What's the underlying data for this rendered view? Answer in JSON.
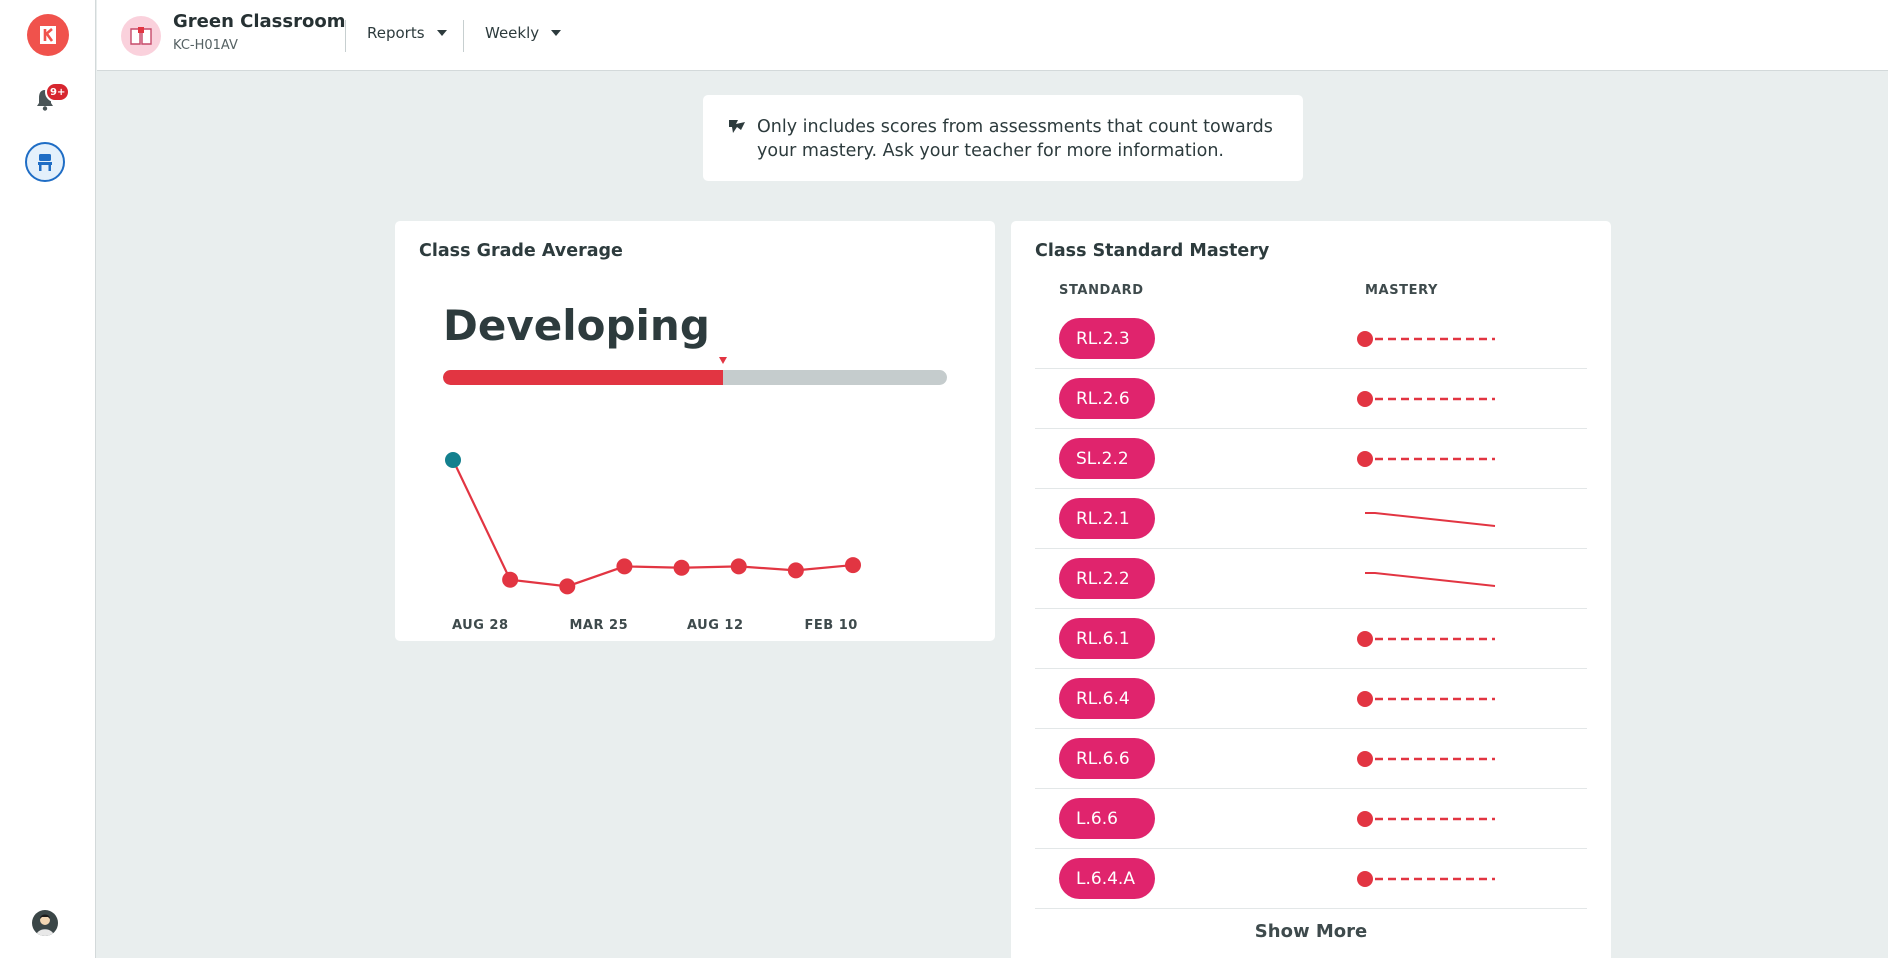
{
  "rail": {
    "notification_badge": "9+"
  },
  "header": {
    "class_name": "Green Classroom",
    "class_code": "KC-H01AV",
    "reports_label": "Reports",
    "period_label": "Weekly"
  },
  "note": {
    "text": "Only includes scores from assessments that count towards your mastery. Ask your teacher for more information."
  },
  "grade_card": {
    "title": "Class Grade Average",
    "level": "Developing",
    "progress_fraction": 0.555,
    "x_labels": [
      "AUG 28",
      "MAR 25",
      "AUG 12",
      "FEB 10"
    ]
  },
  "chart_data": {
    "type": "line",
    "x_tick_labels": [
      "AUG 28",
      "MAR 25",
      "AUG 12",
      "FEB 10"
    ],
    "values": [
      1.0,
      0.1,
      0.05,
      0.2,
      0.19,
      0.2,
      0.17,
      0.21
    ],
    "ylim": [
      0,
      1
    ],
    "colors": {
      "line": "#e23542",
      "first_point": "#13808e"
    }
  },
  "mastery_card": {
    "title": "Class Standard Mastery",
    "col_standard": "STANDARD",
    "col_mastery": "MASTERY",
    "show_more": "Show More",
    "rows": [
      {
        "standard": "RL.2.3",
        "trend": "dashed"
      },
      {
        "standard": "RL.2.6",
        "trend": "dashed"
      },
      {
        "standard": "SL.2.2",
        "trend": "dashed"
      },
      {
        "standard": "RL.2.1",
        "trend": "declining"
      },
      {
        "standard": "RL.2.2",
        "trend": "declining"
      },
      {
        "standard": "RL.6.1",
        "trend": "dashed"
      },
      {
        "standard": "RL.6.4",
        "trend": "dashed"
      },
      {
        "standard": "RL.6.6",
        "trend": "dashed"
      },
      {
        "standard": "L.6.6",
        "trend": "dashed"
      },
      {
        "standard": "L.6.4.A",
        "trend": "dashed"
      }
    ]
  },
  "colors": {
    "accent_red": "#e23542",
    "pill_pink": "#e0246d",
    "active_blue": "#1f6dc5"
  }
}
